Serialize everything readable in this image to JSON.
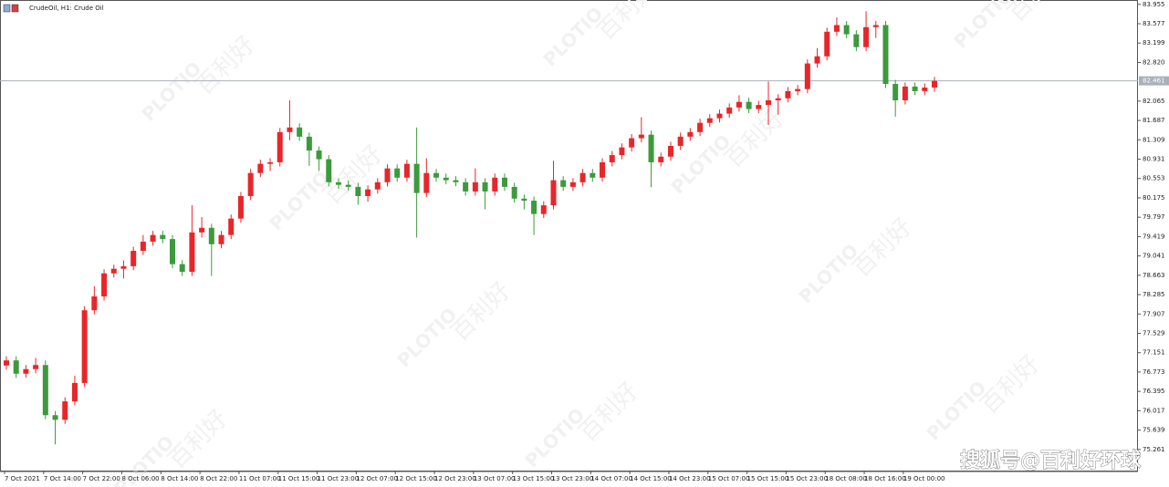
{
  "chart_data": {
    "type": "candlestick",
    "title": "CrudeOil, H1:  Crude Oil",
    "categories": [
      "7 Oct 2021",
      null,
      null,
      null,
      "7 Oct 14:00",
      null,
      null,
      null,
      "7 Oct 22:00",
      null,
      null,
      null,
      "8 Oct 06:00",
      null,
      null,
      null,
      "8 Oct 14:00",
      null,
      null,
      null,
      "8 Oct 22:00",
      null,
      null,
      null,
      "11 Oct 07:00",
      null,
      null,
      null,
      "11 Oct 15:00",
      null,
      null,
      null,
      "11 Oct 23:00",
      null,
      null,
      null,
      "12 Oct 07:00",
      null,
      null,
      null,
      "12 Oct 15:00",
      null,
      null,
      null,
      "12 Oct 23:00",
      null,
      null,
      null,
      "13 Oct 07:00",
      null,
      null,
      null,
      "13 Oct 15:00",
      null,
      null,
      null,
      "13 Oct 23:00",
      null,
      null,
      null,
      "14 Oct 07:00",
      null,
      null,
      null,
      "14 Oct 15:00",
      null,
      null,
      null,
      "14 Oct 23:00",
      null,
      null,
      null,
      "15 Oct 07:00",
      null,
      null,
      null,
      "15 Oct 15:00",
      null,
      null,
      null,
      "15 Oct 23:00",
      null,
      null,
      null,
      "18 Oct 08:00",
      null,
      null,
      null,
      "18 Oct 16:00",
      null,
      null,
      null,
      "19 Oct 00:00",
      null,
      null,
      null
    ],
    "open": [
      76.9,
      77.0,
      76.74,
      76.83,
      76.91,
      75.93,
      75.84,
      76.2,
      76.56,
      77.98,
      78.25,
      78.7,
      78.79,
      78.84,
      79.14,
      79.32,
      79.45,
      79.37,
      78.88,
      78.73,
      79.5,
      79.59,
      79.27,
      79.45,
      79.77,
      80.21,
      80.66,
      80.84,
      80.87,
      81.46,
      81.55,
      81.37,
      81.1,
      80.93,
      80.48,
      80.43,
      80.39,
      80.21,
      80.34,
      80.48,
      80.75,
      80.57,
      80.84,
      80.27,
      80.66,
      80.57,
      80.52,
      80.48,
      80.3,
      80.48,
      80.3,
      80.57,
      80.39,
      80.16,
      80.12,
      79.86,
      80.03,
      80.52,
      80.39,
      80.48,
      80.66,
      80.57,
      80.87,
      81.01,
      81.16,
      81.34,
      81.41,
      80.87,
      80.98,
      81.19,
      81.37,
      81.46,
      81.64,
      81.73,
      81.82,
      81.94,
      82.05,
      81.91,
      81.99,
      82.08,
      82.12,
      82.26,
      82.3,
      82.8,
      82.94,
      83.42,
      83.55,
      83.37,
      83.12,
      83.51,
      83.55,
      82.4,
      82.08,
      82.35,
      82.26,
      82.33
    ],
    "high": [
      77.08,
      77.08,
      76.91,
      77.05,
      77.0,
      76.01,
      76.28,
      76.7,
      78.06,
      78.45,
      78.78,
      78.87,
      78.95,
      79.22,
      79.45,
      79.53,
      79.53,
      79.45,
      78.96,
      80.03,
      79.8,
      79.67,
      79.53,
      79.85,
      80.29,
      80.74,
      80.92,
      80.95,
      81.54,
      82.08,
      81.63,
      81.45,
      81.18,
      81.01,
      80.56,
      80.51,
      80.47,
      80.42,
      80.56,
      80.83,
      80.83,
      80.92,
      81.55,
      80.95,
      80.74,
      80.65,
      80.6,
      80.56,
      80.75,
      80.56,
      80.65,
      80.65,
      80.47,
      80.24,
      80.2,
      80.11,
      80.9,
      80.6,
      80.56,
      80.74,
      80.74,
      80.95,
      81.09,
      81.24,
      81.42,
      81.75,
      81.49,
      81.06,
      81.27,
      81.45,
      81.54,
      81.72,
      81.81,
      81.9,
      82.02,
      82.18,
      82.13,
      82.07,
      82.45,
      82.2,
      82.34,
      82.38,
      82.88,
      83.1,
      83.5,
      83.7,
      83.63,
      83.45,
      83.82,
      83.63,
      83.63,
      82.48,
      82.43,
      82.43,
      82.41,
      82.54
    ],
    "low": [
      76.82,
      76.66,
      76.66,
      76.75,
      75.85,
      75.36,
      75.76,
      76.12,
      76.48,
      77.9,
      78.17,
      78.62,
      78.6,
      78.76,
      79.06,
      79.24,
      79.29,
      78.8,
      78.65,
      78.65,
      79.4,
      78.65,
      79.19,
      79.37,
      79.69,
      80.13,
      80.58,
      80.7,
      80.79,
      81.3,
      81.29,
      80.8,
      80.7,
      80.4,
      80.35,
      80.31,
      80.04,
      80.1,
      80.26,
      80.4,
      80.49,
      80.49,
      79.4,
      80.19,
      80.49,
      80.44,
      80.4,
      80.22,
      80.22,
      79.95,
      80.22,
      80.31,
      80.08,
      79.95,
      79.45,
      79.78,
      79.95,
      80.31,
      80.31,
      80.4,
      80.49,
      80.49,
      80.79,
      80.93,
      81.08,
      81.26,
      80.38,
      80.79,
      80.9,
      81.11,
      81.29,
      81.38,
      81.56,
      81.65,
      81.74,
      81.86,
      81.83,
      81.83,
      81.6,
      81.8,
      82.04,
      82.18,
      82.22,
      82.72,
      82.86,
      83.34,
      83.29,
      83.04,
      83.04,
      83.3,
      82.32,
      81.76,
      82.0,
      82.18,
      82.18,
      82.25
    ],
    "close": [
      77.0,
      76.74,
      76.83,
      76.91,
      75.93,
      75.84,
      76.2,
      76.56,
      77.98,
      78.25,
      78.7,
      78.79,
      78.84,
      79.14,
      79.32,
      79.45,
      79.37,
      78.88,
      78.73,
      79.5,
      79.59,
      79.27,
      79.45,
      79.77,
      80.21,
      80.66,
      80.84,
      80.87,
      81.46,
      81.55,
      81.37,
      81.1,
      80.93,
      80.48,
      80.43,
      80.39,
      80.21,
      80.34,
      80.48,
      80.75,
      80.57,
      80.84,
      80.27,
      80.66,
      80.57,
      80.52,
      80.48,
      80.3,
      80.48,
      80.3,
      80.57,
      80.39,
      80.16,
      80.12,
      79.86,
      80.03,
      80.52,
      80.39,
      80.48,
      80.66,
      80.57,
      80.87,
      81.01,
      81.16,
      81.34,
      81.41,
      80.87,
      80.98,
      81.19,
      81.37,
      81.46,
      81.64,
      81.73,
      81.82,
      81.94,
      82.05,
      81.91,
      81.99,
      82.08,
      82.12,
      82.26,
      82.3,
      82.8,
      82.94,
      83.42,
      83.55,
      83.37,
      83.12,
      83.51,
      83.55,
      82.4,
      82.08,
      82.35,
      82.26,
      82.33,
      82.46
    ],
    "up_color": "#e8262a",
    "down_color": "#3c9a3c",
    "ylim": [
      74.83,
      84.04
    ],
    "yticks": [
      83.955,
      83.577,
      83.199,
      {
        "value": 82.82,
        "label": "82.820"
      },
      82.065,
      81.687,
      81.309,
      80.931,
      80.553,
      80.175,
      79.797,
      79.419,
      79.041,
      78.663,
      78.285,
      77.907,
      77.529,
      77.151,
      76.773,
      76.395,
      76.017,
      75.639,
      75.261
    ],
    "current_price": 82.461,
    "watermark": "搜狐号@百利好环球",
    "watermark_logo": "PLOTIO",
    "watermark_brand": "百利好"
  }
}
